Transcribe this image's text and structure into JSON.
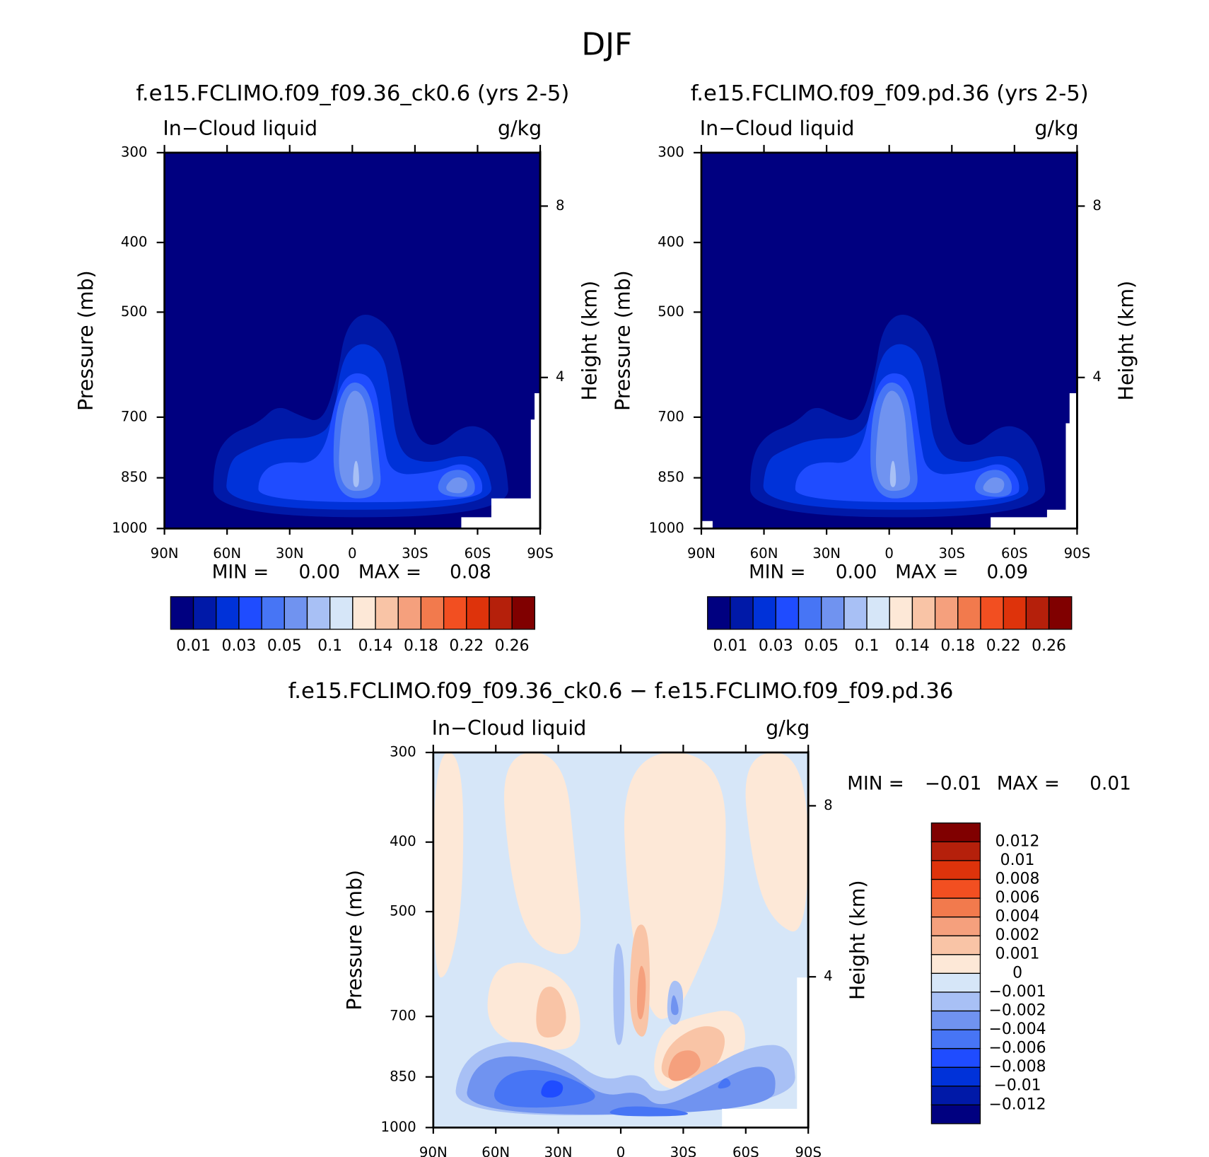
{
  "title": "DJF",
  "chart_data": [
    {
      "type": "contour",
      "title": "f.e15.FCLIMO.f09_f09.36_ck0.6 (yrs 2-5)",
      "left_label": "In−Cloud liquid",
      "right_label": "g/kg",
      "ylabel": "Pressure (mb)",
      "y2label": "Height (km)",
      "xlim": [
        90,
        -90
      ],
      "xticks": [
        {
          "value": 90,
          "label": "90N"
        },
        {
          "value": 60,
          "label": "60N"
        },
        {
          "value": 30,
          "label": "30N"
        },
        0,
        {
          "value": -30,
          "label": "30S"
        },
        {
          "value": -60,
          "label": "60S"
        },
        {
          "value": -90,
          "label": "90S"
        }
      ],
      "ylim": [
        1000,
        300
      ],
      "yscale": "log",
      "yticks": [
        300,
        400,
        500,
        700,
        850,
        1000
      ],
      "y2lim": [
        0.1,
        9.2
      ],
      "y2scale": "standard-atmosphere",
      "y2ticks": [
        4,
        8
      ],
      "min_text": "MIN =",
      "min": {
        "value": 0,
        "label": "0.00"
      },
      "max_text": "MAX =",
      "max": 0.08,
      "colorbar": {
        "orientation": "horizontal",
        "colors": [
          "#000080",
          "#0019a8",
          "#0032d9",
          "#1f4cff",
          "#4775f5",
          "#7093f0",
          "#a8c0f5",
          "#d6e6f8",
          "#fde8d7",
          "#f9c4a6",
          "#f5a07d",
          "#f27a4d",
          "#f24f21",
          "#de330b",
          "#b5200b",
          "#800000"
        ],
        "labels": [
          0.01,
          0.03,
          0.05,
          0.1,
          0.14,
          0.18,
          0.22,
          0.26
        ]
      }
    },
    {
      "type": "contour",
      "title": "f.e15.FCLIMO.f09_f09.pd.36 (yrs 2-5)",
      "left_label": "In−Cloud liquid",
      "right_label": "g/kg",
      "ylabel": "Pressure (mb)",
      "y2label": "Height (km)",
      "xlim": [
        90,
        -90
      ],
      "xticks": [
        {
          "value": 90,
          "label": "90N"
        },
        {
          "value": 60,
          "label": "60N"
        },
        {
          "value": 30,
          "label": "30N"
        },
        0,
        {
          "value": -30,
          "label": "30S"
        },
        {
          "value": -60,
          "label": "60S"
        },
        {
          "value": -90,
          "label": "90S"
        }
      ],
      "ylim": [
        1000,
        300
      ],
      "yscale": "log",
      "yticks": [
        300,
        400,
        500,
        700,
        850,
        1000
      ],
      "y2lim": [
        0.1,
        9.2
      ],
      "y2scale": "standard-atmosphere",
      "y2ticks": [
        4,
        8
      ],
      "min_text": "MIN =",
      "min": {
        "value": 0,
        "label": "0.00"
      },
      "max_text": "MAX =",
      "max": 0.09,
      "colorbar": {
        "orientation": "horizontal",
        "colors": [
          "#000080",
          "#0019a8",
          "#0032d9",
          "#1f4cff",
          "#4775f5",
          "#7093f0",
          "#a8c0f5",
          "#d6e6f8",
          "#fde8d7",
          "#f9c4a6",
          "#f5a07d",
          "#f27a4d",
          "#f24f21",
          "#de330b",
          "#b5200b",
          "#800000"
        ],
        "labels": [
          0.01,
          0.03,
          0.05,
          0.1,
          0.14,
          0.18,
          0.22,
          0.26
        ]
      }
    },
    {
      "type": "contour",
      "title": "f.e15.FCLIMO.f09_f09.36_ck0.6 − f.e15.FCLIMO.f09_f09.pd.36",
      "left_label": "In−Cloud liquid",
      "right_label": "g/kg",
      "ylabel": "Pressure (mb)",
      "y2label": "Height (km)",
      "xlim": [
        90,
        -90
      ],
      "xticks": [
        {
          "value": 90,
          "label": "90N"
        },
        {
          "value": 60,
          "label": "60N"
        },
        {
          "value": 30,
          "label": "30N"
        },
        0,
        {
          "value": -30,
          "label": "30S"
        },
        {
          "value": -60,
          "label": "60S"
        },
        {
          "value": -90,
          "label": "90S"
        }
      ],
      "ylim": [
        1000,
        300
      ],
      "yscale": "log",
      "yticks": [
        300,
        400,
        500,
        700,
        850,
        1000
      ],
      "y2lim": [
        0.1,
        9.2
      ],
      "y2scale": "standard-atmosphere",
      "y2ticks": [
        4,
        8
      ],
      "min_text": "MIN =",
      "min": {
        "value": -0.01,
        "label": "−0.01"
      },
      "max_text": "MAX =",
      "max": 0.01,
      "colorbar": {
        "orientation": "vertical",
        "colors": [
          "#000080",
          "#0019a8",
          "#0032d9",
          "#1f4cff",
          "#4775f5",
          "#7093f0",
          "#a8c0f5",
          "#d6e6f8",
          "#fde8d7",
          "#f9c4a6",
          "#f5a07d",
          "#f27a4d",
          "#f24f21",
          "#de330b",
          "#b5200b",
          "#800000"
        ],
        "labels": [
          {
            "value": -0.012,
            "label": "−0.012"
          },
          {
            "value": -0.01,
            "label": "−0.01"
          },
          {
            "value": -0.008,
            "label": "−0.008"
          },
          {
            "value": -0.006,
            "label": "−0.006"
          },
          {
            "value": -0.004,
            "label": "−0.004"
          },
          {
            "value": -0.002,
            "label": "−0.002"
          },
          {
            "value": -0.001,
            "label": "−0.001"
          },
          0,
          0.001,
          0.002,
          0.004,
          0.006,
          0.008,
          0.01,
          0.012
        ]
      }
    }
  ]
}
